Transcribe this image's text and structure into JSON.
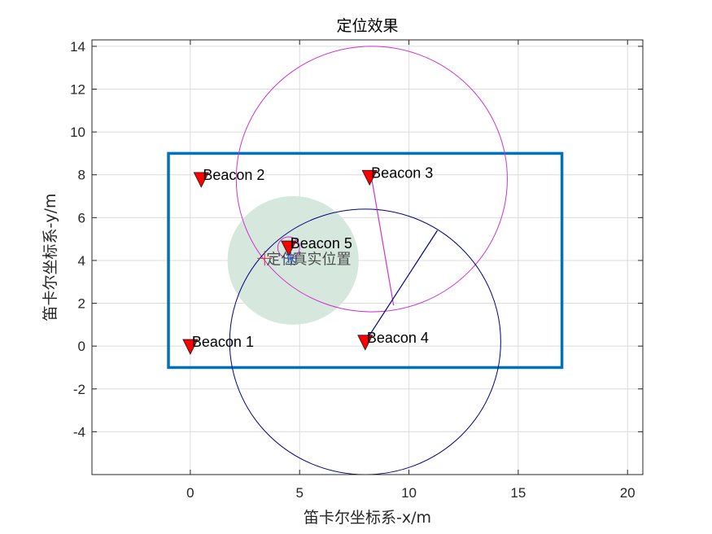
{
  "chart_data": {
    "type": "scatter",
    "title": "定位效果",
    "xlabel": "笛卡尔坐标系-x/m",
    "ylabel": "笛卡尔坐标系-y/m",
    "xlim": [
      -4.5,
      20.7
    ],
    "ylim": [
      -6,
      14.3
    ],
    "xticks": [
      0,
      5,
      10,
      15,
      20
    ],
    "yticks": [
      -4,
      -2,
      0,
      2,
      4,
      6,
      8,
      10,
      12,
      14
    ],
    "grid": true,
    "boundary_rect": {
      "x0": -1,
      "y0": -1,
      "x1": 17,
      "y1": 9,
      "color": "#0072BD"
    },
    "beacons": [
      {
        "label": "Beacon 1",
        "x": 0,
        "y": 0
      },
      {
        "label": "Beacon 2",
        "x": 0.5,
        "y": 7.8
      },
      {
        "label": "Beacon 3",
        "x": 8.2,
        "y": 7.9
      },
      {
        "label": "Beacon 4",
        "x": 8,
        "y": 0.2
      },
      {
        "label": "Beacon 5",
        "x": 4.5,
        "y": 4.6
      }
    ],
    "range_circles": [
      {
        "cx": 8.3,
        "cy": 7.8,
        "r": 6.2,
        "color": "#CC33CC"
      },
      {
        "cx": 8.0,
        "cy": 0.2,
        "r": 6.2,
        "color": "#000080"
      },
      {
        "cx": 4.5,
        "cy": 4.6,
        "r": 0.5,
        "color": "#CC33CC"
      }
    ],
    "range_lines": [
      {
        "x1": 8.3,
        "y1": 7.8,
        "x2": 9.3,
        "y2": 1.9,
        "color": "#CC33CC"
      },
      {
        "x1": 8.0,
        "y1": 0.2,
        "x2": 11.3,
        "y2": 5.4,
        "color": "#000080"
      }
    ],
    "error_region": {
      "cx": 4.7,
      "cy": 4.0,
      "r": 3.0,
      "color": "#D4E6DC"
    },
    "points": [
      {
        "name": "定位",
        "x": 3.4,
        "y": 4.1,
        "marker": "+",
        "color": "#CC3333"
      },
      {
        "name": "真实位置",
        "x": 4.6,
        "y": 4.1,
        "marker": "*",
        "color": "#3366CC"
      }
    ]
  }
}
